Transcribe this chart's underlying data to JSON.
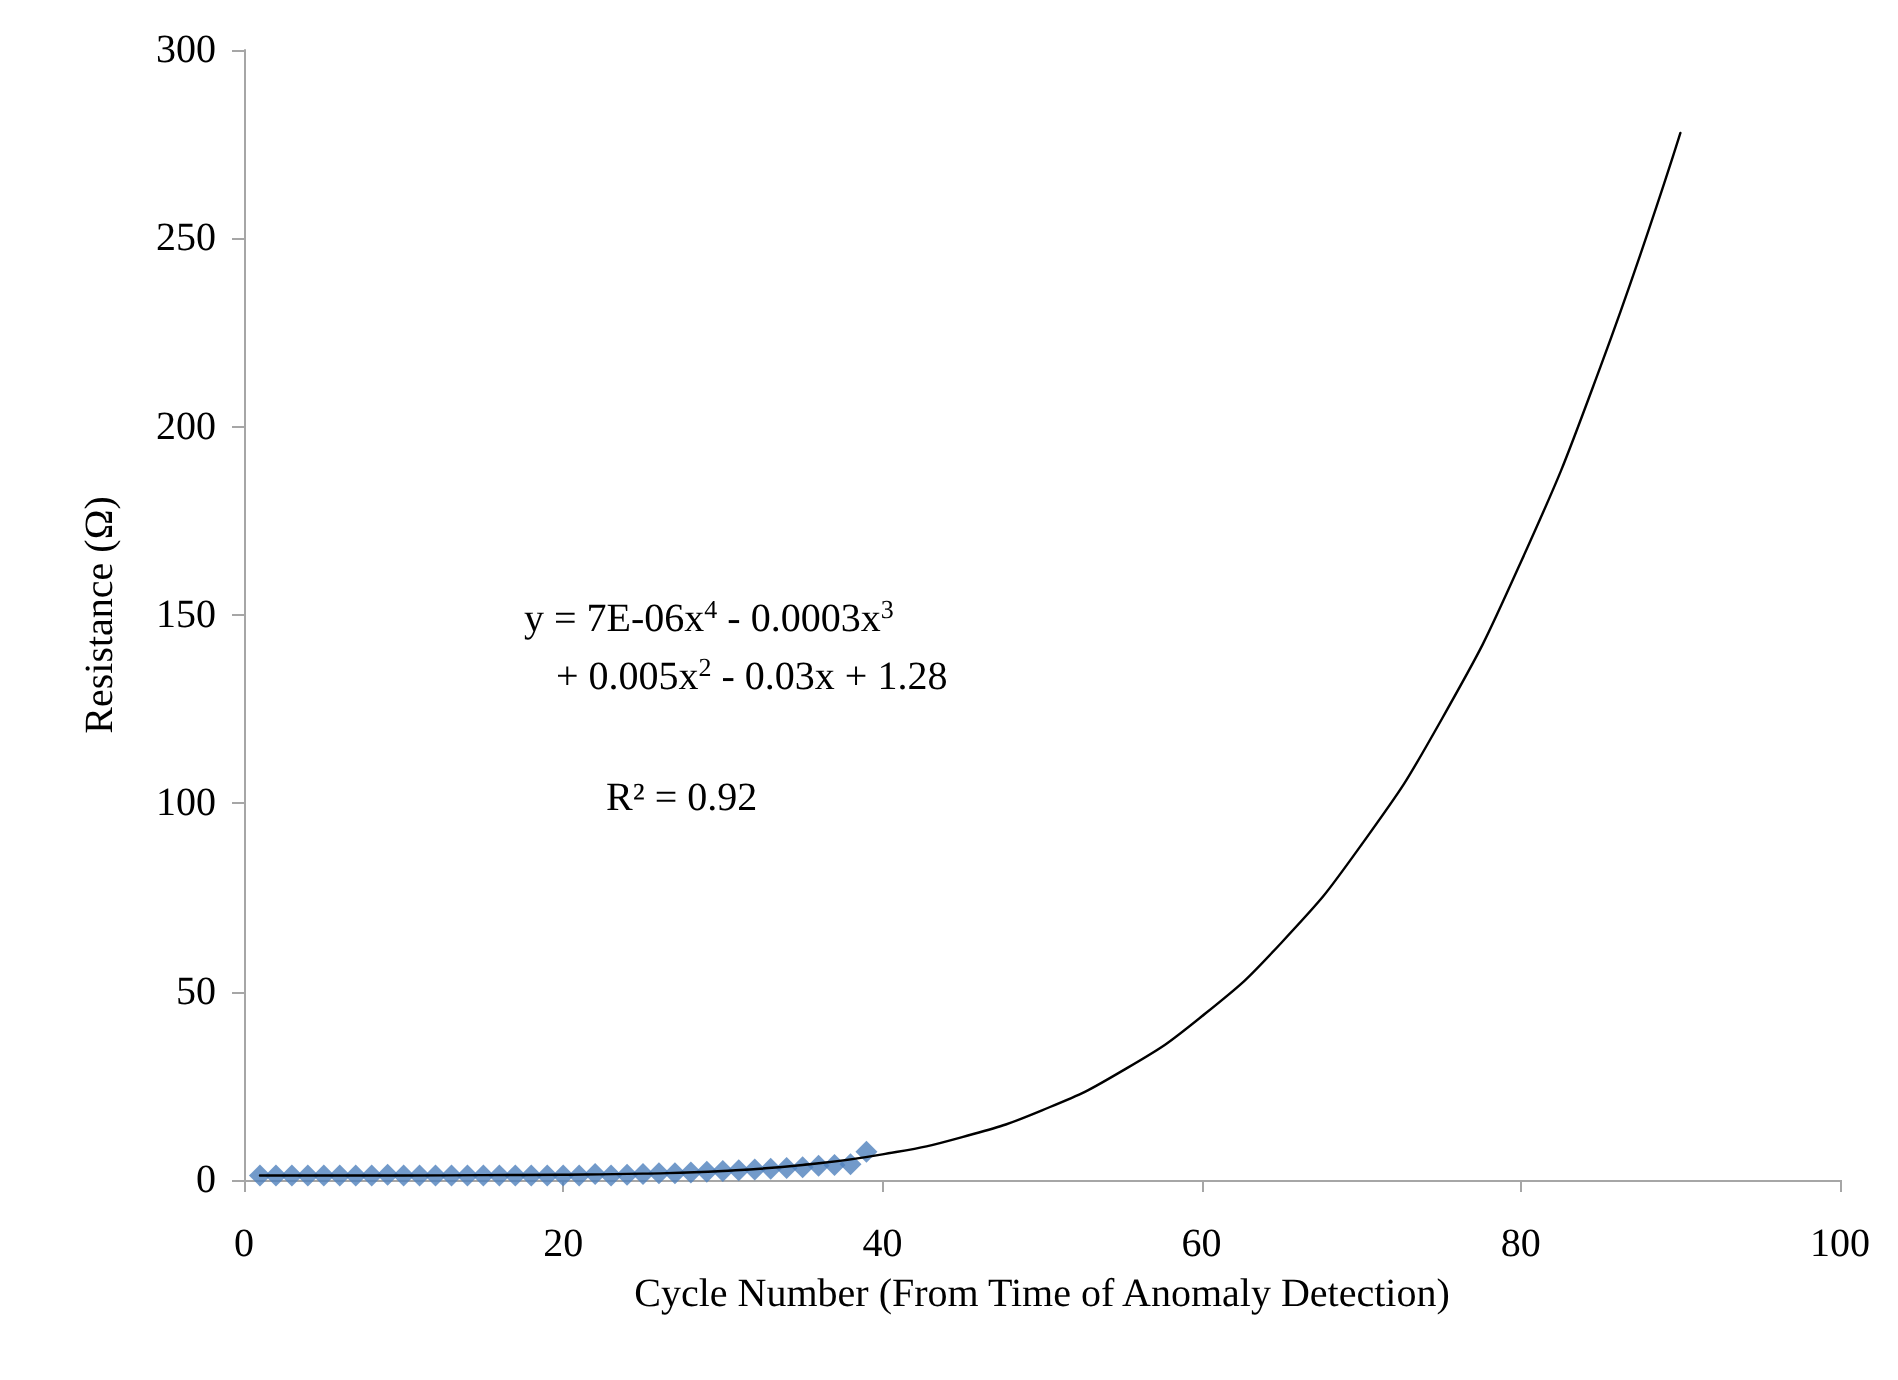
{
  "chart_data": {
    "type": "scatter",
    "xlabel": "Cycle Number (From Time of Anomaly Detection)",
    "ylabel": "Resistance (Ω)",
    "xlim": [
      0,
      100
    ],
    "xticks": [
      0,
      20,
      40,
      60,
      80,
      100
    ],
    "ylim": [
      0,
      300
    ],
    "yticks": [
      0,
      50,
      100,
      150,
      200,
      250,
      300
    ],
    "grid": false,
    "series": [
      {
        "color": "#4f81bd",
        "marker": "diamond",
        "x": [
          1,
          2,
          3,
          4,
          5,
          6,
          7,
          8,
          9,
          10,
          11,
          12,
          13,
          14,
          15,
          16,
          17,
          18,
          19,
          20,
          21,
          22,
          23,
          24,
          25,
          26,
          27,
          28,
          29,
          30,
          31,
          32,
          33,
          34,
          35,
          36,
          37,
          38,
          39
        ],
        "values": [
          1.2,
          1.2,
          1.2,
          1.2,
          1.2,
          1.2,
          1.2,
          1.2,
          1.4,
          1.2,
          1.2,
          1.2,
          1.2,
          1.2,
          1.2,
          1.2,
          1.2,
          1.2,
          1.2,
          1.2,
          1.2,
          1.6,
          1.2,
          1.4,
          1.6,
          1.8,
          1.8,
          2.0,
          2.2,
          2.4,
          2.6,
          2.8,
          3.0,
          3.2,
          3.4,
          3.8,
          4.0,
          4.2,
          7.5
        ]
      },
      {
        "type": "line",
        "color": "#000000",
        "marker": "none",
        "line_style": "solid",
        "x": [
          1,
          5,
          10,
          15,
          20,
          25,
          30,
          35,
          40,
          45,
          50,
          55,
          60,
          65,
          70,
          75,
          80,
          85,
          90
        ],
        "values": [
          1.2,
          1.2,
          1.2,
          1.3,
          1.4,
          1.7,
          2.4,
          4.0,
          6.8,
          11.4,
          18.5,
          28.9,
          43.4,
          63,
          88.9,
          122,
          164,
          216,
          278
        ]
      }
    ],
    "annotations": [
      "y = 7E-06x$^{4}$ - 0.0003x$^{3}$",
      "+ 0.005x$^{2}$ - 0.03x + 1.28",
      "R² = 0.92"
    ]
  }
}
